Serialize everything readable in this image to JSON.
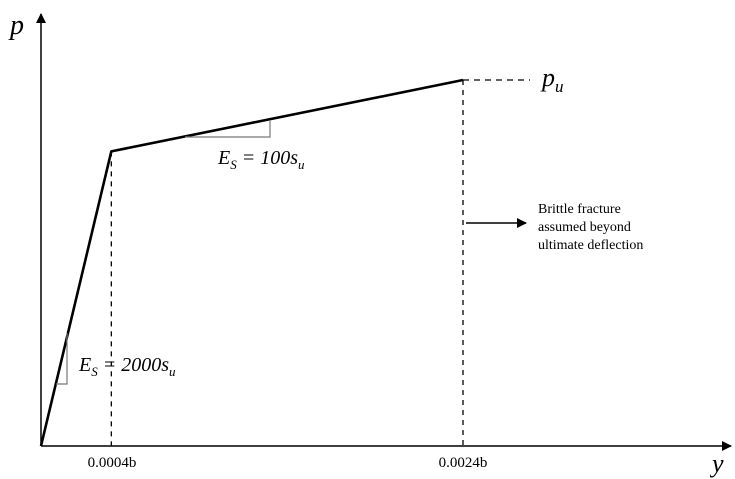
{
  "chart_data": {
    "type": "line",
    "title": "",
    "xlabel": "y",
    "ylabel": "p",
    "series": [
      {
        "points": [
          {
            "x": 0,
            "y": 0
          },
          {
            "x": 0.0004,
            "y": 0.805
          },
          {
            "x": 0.0024,
            "y": 1.0
          }
        ]
      }
    ],
    "xticks": [
      {
        "value": 0.0004,
        "label": "0.0004b"
      },
      {
        "value": 0.0024,
        "label": "0.0024b"
      }
    ],
    "pu_label": {
      "base": "p",
      "sub": "u"
    },
    "annotations": {
      "slope_initial": {
        "lhs": "E",
        "lhs_sub": "S",
        "rhs": "= 2000s",
        "rhs_sub": "u"
      },
      "slope_second": {
        "lhs": "E",
        "lhs_sub": "S",
        "rhs": "= 100s",
        "rhs_sub": "u"
      },
      "fracture_note": [
        "Brittle fracture",
        "assumed beyond",
        "ultimate deflection"
      ]
    }
  }
}
